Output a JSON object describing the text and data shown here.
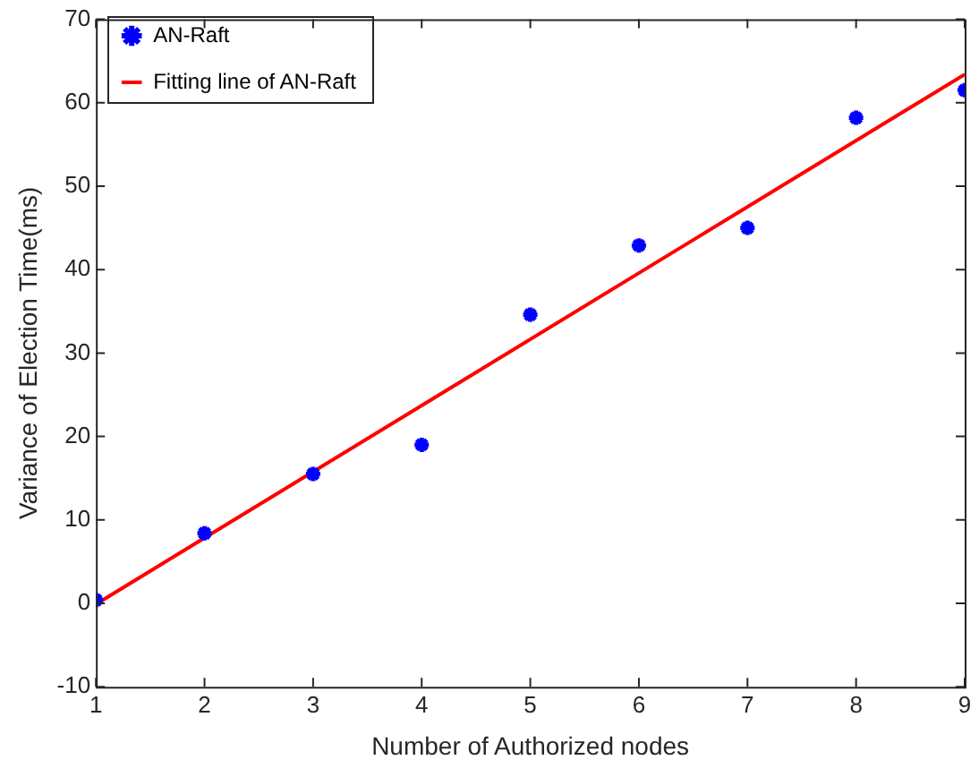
{
  "chart_data": {
    "type": "scatter",
    "xlabel": "Number of Authorized nodes",
    "ylabel": "Variance of Election Time(ms)",
    "x": [
      1,
      2,
      3,
      4,
      5,
      6,
      7,
      8,
      9
    ],
    "series": [
      {
        "name": "AN-Raft",
        "color": "#0000ff",
        "marker": "cross",
        "values": [
          0.4,
          8.4,
          15.5,
          19.0,
          34.6,
          42.9,
          45.0,
          58.2,
          61.5
        ]
      },
      {
        "name": "Fitting line of AN-Raft",
        "type": "line",
        "color": "#ff0000",
        "marker": "none",
        "line_style": "solid",
        "x": [
          1,
          9
        ],
        "values": [
          -0.1,
          63.4
        ]
      }
    ],
    "xlim": [
      1,
      9
    ],
    "xticks": [
      1,
      2,
      3,
      4,
      5,
      6,
      7,
      8,
      9
    ],
    "ylim": [
      -10,
      70
    ],
    "yticks": [
      -10,
      0,
      10,
      20,
      30,
      40,
      50,
      60,
      70
    ],
    "grid": false,
    "legend": "top left"
  }
}
